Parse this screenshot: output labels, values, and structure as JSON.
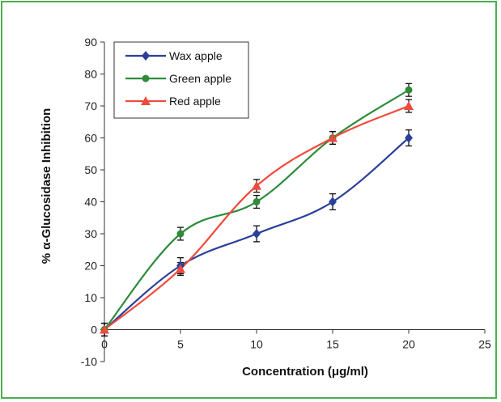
{
  "chart_data": {
    "type": "line",
    "xlabel": "Concentration (μg/ml)",
    "ylabel": "% α-Glucosidase Inhibition",
    "xlim": [
      0,
      25
    ],
    "ylim": [
      -10,
      90
    ],
    "x_ticks": [
      0,
      5,
      10,
      15,
      20,
      25
    ],
    "y_ticks": [
      -10,
      0,
      10,
      20,
      30,
      40,
      50,
      60,
      70,
      80,
      90
    ],
    "x": [
      0,
      5,
      10,
      15,
      20
    ],
    "legend_position": "top-left",
    "grid": false,
    "series": [
      {
        "name": "Wax apple",
        "color": "#2b3f9a",
        "marker": "diamond",
        "values": [
          0,
          20,
          30,
          40,
          60
        ],
        "error": [
          2,
          2.5,
          2.5,
          2.5,
          2.5
        ]
      },
      {
        "name": "Green apple",
        "color": "#2e8b3a",
        "marker": "circle",
        "values": [
          0,
          30,
          40,
          60,
          75
        ],
        "error": [
          2,
          2,
          2,
          2,
          2
        ]
      },
      {
        "name": "Red apple",
        "color": "#f04a3c",
        "marker": "triangle",
        "values": [
          0,
          19,
          45,
          60,
          70
        ],
        "error": [
          2,
          2,
          2,
          2,
          2
        ]
      }
    ]
  }
}
